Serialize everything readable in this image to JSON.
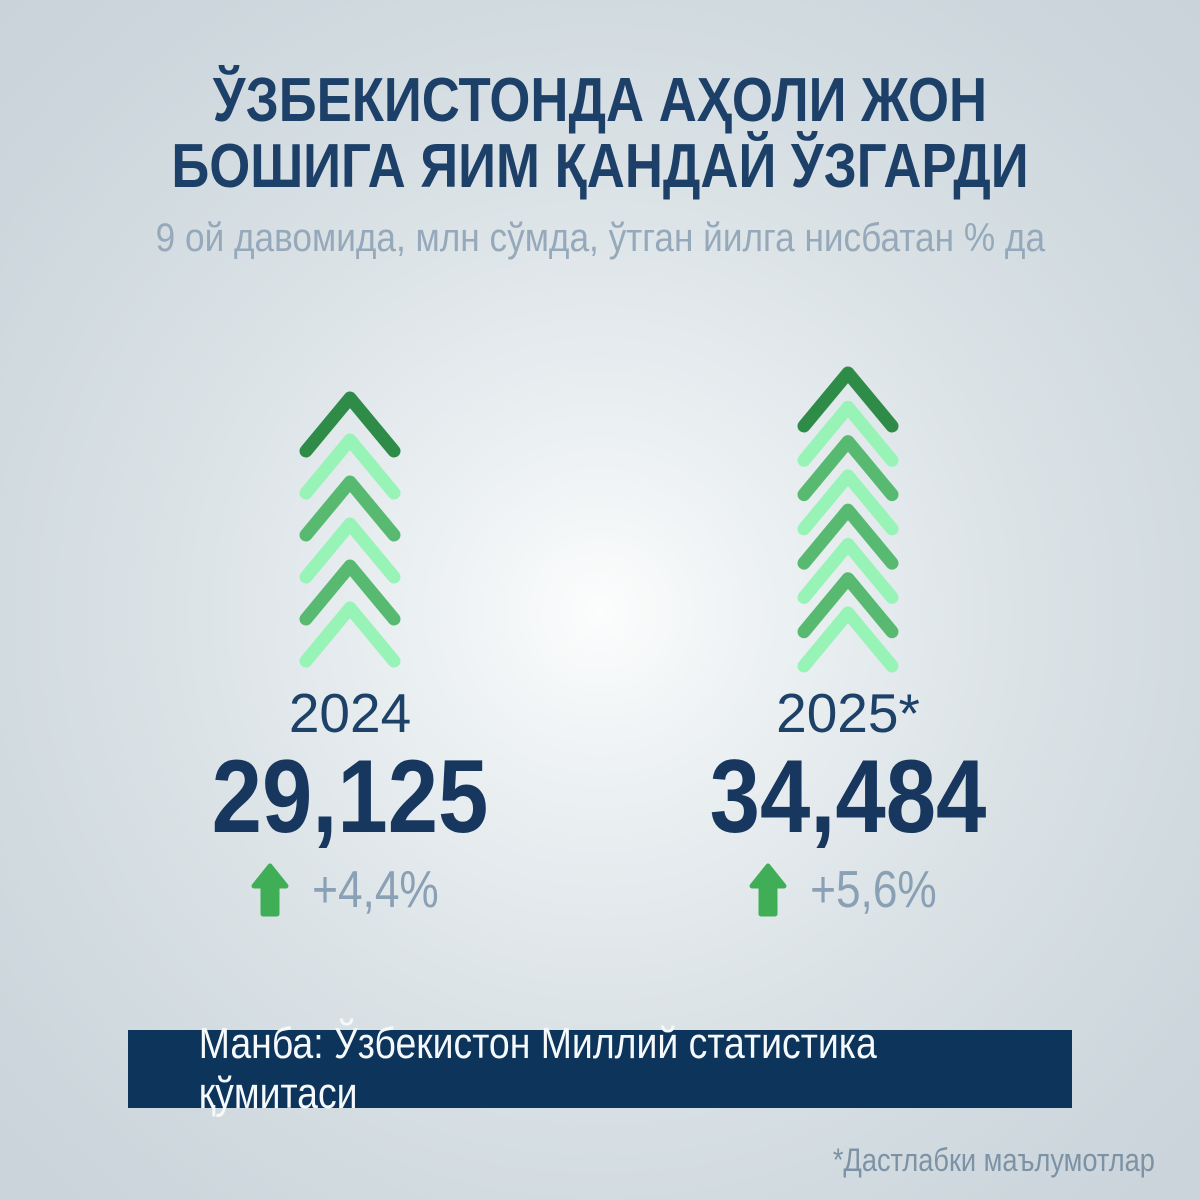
{
  "header": {
    "title_line1": "ЎЗБЕКИСТОНДА АҲОЛИ ЖОН",
    "title_line2": "БОШИГА ЯИМ ҚАНДАЙ ЎЗГАРДИ",
    "subtitle": "9 ой давомида, млн сўмда, ўтган йилга нисбатан % да"
  },
  "chart_data": {
    "type": "pictorial-bar",
    "title": "ЎЗБЕКИСТОНДА АҲОЛИ ЖОН БОШИГА ЯИМ ҚАНДАЙ ЎЗГАРДИ",
    "subtitle": "9 ой давомида, млн сўмда, ўтган йилга нисбатан % да",
    "categories": [
      "2024",
      "2025*"
    ],
    "values": [
      29125,
      34484
    ],
    "value_labels": [
      "29,125",
      "34,484"
    ],
    "change_percent": [
      "+4,4%",
      "+5,6%"
    ],
    "chevron_counts": [
      6,
      8
    ],
    "legend": null,
    "colors": {
      "chevron_dark": "#2e8b48",
      "chevron_medium": "#58ba70",
      "chevron_light": "#97f3b6",
      "connector_green": "#3ba257",
      "arrow_green": "#3fae57",
      "value_navy": "#17375f",
      "label_navy": "#1e4168",
      "muted_gray": "#8aa0b5",
      "title_navy": "#1d4069",
      "source_bar_navy": "#0d345b"
    }
  },
  "footer": {
    "source": "Манба: Ўзбекистон Миллий статистика қўмитаси",
    "footnote": "*Дастлабки маълумотлар"
  }
}
